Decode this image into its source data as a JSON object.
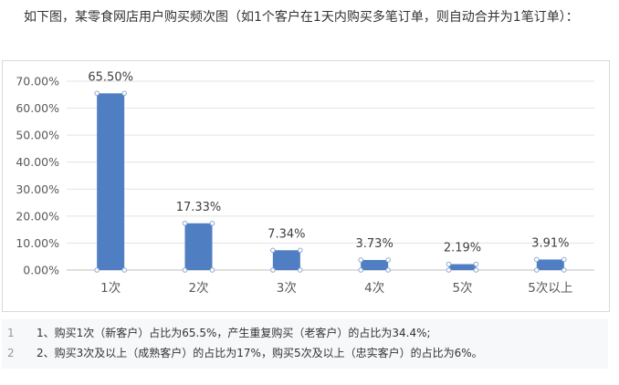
{
  "intro": "如下图，某零食网店用户购买频次图（如1个客户在1天内购买多笔订单，则自动合并为1笔订单）：",
  "chart_data": {
    "type": "bar",
    "categories": [
      "1次",
      "2次",
      "3次",
      "4次",
      "5次",
      "5次以上"
    ],
    "values": [
      65.5,
      17.33,
      7.34,
      3.73,
      2.19,
      3.91
    ],
    "data_labels": [
      "65.50%",
      "17.33%",
      "7.34%",
      "3.73%",
      "2.19%",
      "3.91%"
    ],
    "y_ticks": [
      "0.00%",
      "10.00%",
      "20.00%",
      "30.00%",
      "40.00%",
      "50.00%",
      "60.00%",
      "70.00%"
    ],
    "ylim": [
      0,
      70
    ],
    "title": "",
    "xlabel": "",
    "ylabel": "",
    "grid": true,
    "bar_color": "#4f7ec2",
    "legend": "none"
  },
  "code": {
    "lines": [
      {
        "num": "1",
        "text": "1、购买1次（新客户）占比为65.5%，产生重复购买（老客户）的占比为34.4%;"
      },
      {
        "num": "2",
        "text": "2、购买3次及以上（成熟客户）的占比为17%，购买5次及以上（忠实客户）的占比为6%。"
      }
    ]
  }
}
